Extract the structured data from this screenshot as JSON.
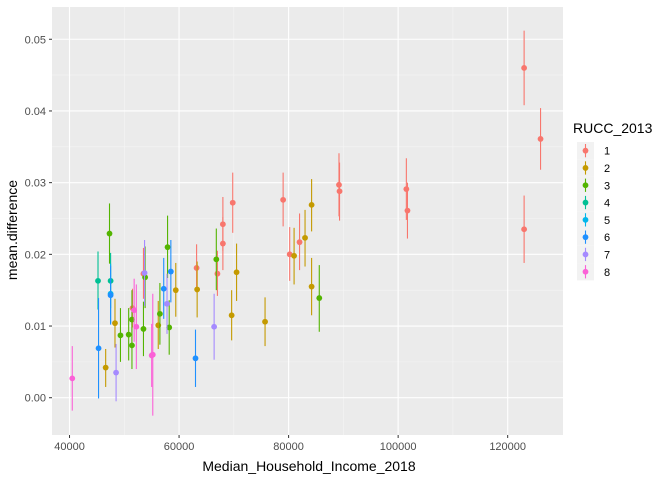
{
  "chart_data": {
    "type": "scatter",
    "title": "",
    "xlabel": "Median_Household_Income_2018",
    "ylabel": "mean.difference",
    "xlim": [
      36800,
      130100
    ],
    "ylim": [
      -0.0052,
      0.0545
    ],
    "x_ticks": [
      40000,
      60000,
      80000,
      100000,
      120000
    ],
    "x_tick_labels": [
      "40000",
      "60000",
      "80000",
      "100000",
      "120000"
    ],
    "y_ticks": [
      0.0,
      0.01,
      0.02,
      0.03,
      0.04,
      0.05
    ],
    "y_tick_labels": [
      "0.00",
      "0.01",
      "0.02",
      "0.03",
      "0.04",
      "0.05"
    ],
    "grid": true,
    "error_bars": true,
    "legend": {
      "title": "RUCC_2013",
      "position": "right"
    },
    "series": [
      {
        "name": "1",
        "color": "#F8766D",
        "points": [
          {
            "x": 123000,
            "y": 0.046,
            "lo": 0.0408,
            "hi": 0.0512
          },
          {
            "x": 126000,
            "y": 0.0361,
            "lo": 0.0318,
            "hi": 0.0404
          },
          {
            "x": 123000,
            "y": 0.0235,
            "lo": 0.0188,
            "hi": 0.0282
          },
          {
            "x": 101500,
            "y": 0.0291,
            "lo": 0.0248,
            "hi": 0.0334
          },
          {
            "x": 101700,
            "y": 0.0261,
            "lo": 0.0222,
            "hi": 0.03
          },
          {
            "x": 89200,
            "y": 0.0297,
            "lo": 0.0253,
            "hi": 0.0341
          },
          {
            "x": 89300,
            "y": 0.0288,
            "lo": 0.0247,
            "hi": 0.0328
          },
          {
            "x": 79000,
            "y": 0.0276,
            "lo": 0.0239,
            "hi": 0.0314
          },
          {
            "x": 69800,
            "y": 0.0272,
            "lo": 0.023,
            "hi": 0.0314
          },
          {
            "x": 68000,
            "y": 0.0242,
            "lo": 0.0205,
            "hi": 0.028
          },
          {
            "x": 68000,
            "y": 0.0215,
            "lo": 0.0178,
            "hi": 0.0252
          },
          {
            "x": 80200,
            "y": 0.02,
            "lo": 0.0163,
            "hi": 0.0238
          },
          {
            "x": 82000,
            "y": 0.0217,
            "lo": 0.0178,
            "hi": 0.0257
          },
          {
            "x": 63200,
            "y": 0.0181,
            "lo": 0.0147,
            "hi": 0.0214
          },
          {
            "x": 67000,
            "y": 0.0173,
            "lo": 0.0142,
            "hi": 0.0205
          },
          {
            "x": 51500,
            "y": 0.0125,
            "lo": 0.0098,
            "hi": 0.0152
          },
          {
            "x": 53500,
            "y": 0.0173,
            "lo": 0.0138,
            "hi": 0.0209
          }
        ]
      },
      {
        "name": "2",
        "color": "#C49A00",
        "points": [
          {
            "x": 84200,
            "y": 0.0269,
            "lo": 0.0232,
            "hi": 0.0305
          },
          {
            "x": 83000,
            "y": 0.0223,
            "lo": 0.0183,
            "hi": 0.0262
          },
          {
            "x": 81000,
            "y": 0.0198,
            "lo": 0.0158,
            "hi": 0.0237
          },
          {
            "x": 84200,
            "y": 0.0155,
            "lo": 0.0115,
            "hi": 0.0195
          },
          {
            "x": 70500,
            "y": 0.0175,
            "lo": 0.0135,
            "hi": 0.0215
          },
          {
            "x": 63300,
            "y": 0.0151,
            "lo": 0.0112,
            "hi": 0.019
          },
          {
            "x": 59400,
            "y": 0.015,
            "lo": 0.0113,
            "hi": 0.0188
          },
          {
            "x": 69600,
            "y": 0.0115,
            "lo": 0.008,
            "hi": 0.015
          },
          {
            "x": 75700,
            "y": 0.0106,
            "lo": 0.0072,
            "hi": 0.014
          },
          {
            "x": 48300,
            "y": 0.0104,
            "lo": 0.007,
            "hi": 0.0138
          },
          {
            "x": 56200,
            "y": 0.0101,
            "lo": 0.0068,
            "hi": 0.0135
          },
          {
            "x": 46600,
            "y": 0.0042,
            "lo": 0.0015,
            "hi": 0.0068
          }
        ]
      },
      {
        "name": "3",
        "color": "#53B400",
        "points": [
          {
            "x": 47300,
            "y": 0.0229,
            "lo": 0.0187,
            "hi": 0.0271
          },
          {
            "x": 57900,
            "y": 0.021,
            "lo": 0.0167,
            "hi": 0.0254
          },
          {
            "x": 66800,
            "y": 0.0193,
            "lo": 0.015,
            "hi": 0.0236
          },
          {
            "x": 53800,
            "y": 0.0168,
            "lo": 0.0125,
            "hi": 0.0211
          },
          {
            "x": 85600,
            "y": 0.0139,
            "lo": 0.0092,
            "hi": 0.0185
          },
          {
            "x": 56500,
            "y": 0.0117,
            "lo": 0.0074,
            "hi": 0.016
          },
          {
            "x": 51400,
            "y": 0.0109,
            "lo": 0.0068,
            "hi": 0.015
          },
          {
            "x": 58200,
            "y": 0.0098,
            "lo": 0.006,
            "hi": 0.0136
          },
          {
            "x": 53500,
            "y": 0.0096,
            "lo": 0.0058,
            "hi": 0.0134
          },
          {
            "x": 49300,
            "y": 0.0087,
            "lo": 0.005,
            "hi": 0.0125
          },
          {
            "x": 50800,
            "y": 0.0088,
            "lo": 0.0052,
            "hi": 0.0125
          },
          {
            "x": 51400,
            "y": 0.0073,
            "lo": 0.004,
            "hi": 0.0106
          }
        ]
      },
      {
        "name": "4",
        "color": "#00C094",
        "points": [
          {
            "x": 45200,
            "y": 0.0163,
            "lo": 0.0123,
            "hi": 0.0204
          },
          {
            "x": 47500,
            "y": 0.0163,
            "lo": 0.0125,
            "hi": 0.0202
          }
        ]
      },
      {
        "name": "5",
        "color": "#00B6EB",
        "points": [
          {
            "x": 47500,
            "y": 0.0145,
            "lo": 0.0104,
            "hi": 0.0187
          }
        ]
      },
      {
        "name": "6",
        "color": "#1E90FF",
        "points": [
          {
            "x": 47500,
            "y": 0.0143,
            "lo": 0.0102,
            "hi": 0.0184
          },
          {
            "x": 58500,
            "y": 0.0176,
            "lo": 0.0133,
            "hi": 0.022
          },
          {
            "x": 57200,
            "y": 0.0152,
            "lo": 0.011,
            "hi": 0.0195
          },
          {
            "x": 45300,
            "y": 0.0069,
            "lo": -0.0001,
            "hi": 0.0139
          },
          {
            "x": 63000,
            "y": 0.0055,
            "lo": 0.0015,
            "hi": 0.0095
          }
        ]
      },
      {
        "name": "7",
        "color": "#A58AFF",
        "points": [
          {
            "x": 53700,
            "y": 0.0174,
            "lo": 0.0128,
            "hi": 0.022
          },
          {
            "x": 57800,
            "y": 0.0131,
            "lo": 0.0089,
            "hi": 0.0173
          },
          {
            "x": 66400,
            "y": 0.0099,
            "lo": 0.0053,
            "hi": 0.0145
          },
          {
            "x": 48500,
            "y": 0.0035,
            "lo": -0.0005,
            "hi": 0.0075
          }
        ]
      },
      {
        "name": "8",
        "color": "#FB61D7",
        "points": [
          {
            "x": 40500,
            "y": 0.0027,
            "lo": -0.0018,
            "hi": 0.0072
          },
          {
            "x": 51800,
            "y": 0.0122,
            "lo": 0.0078,
            "hi": 0.0166
          },
          {
            "x": 52200,
            "y": 0.0099,
            "lo": 0.004,
            "hi": 0.0158
          },
          {
            "x": 55200,
            "y": 0.006,
            "lo": -0.0025,
            "hi": 0.0145
          },
          {
            "x": 55000,
            "y": 0.0059,
            "lo": 0.0015,
            "hi": 0.0103
          }
        ]
      }
    ]
  }
}
